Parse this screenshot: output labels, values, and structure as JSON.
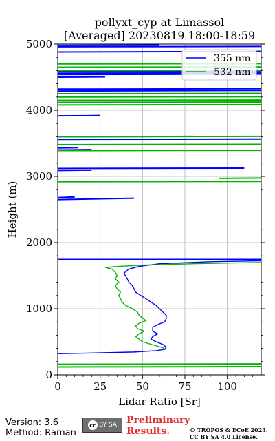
{
  "title_line1": "pollyxt_cyp at Limassol",
  "title_line2": "[Averaged] 20230819 18:00-18:59",
  "footer": {
    "version": "Version: 3.6",
    "method": "Method: Raman",
    "cc_label": "BY SA",
    "preliminary_line1": "Preliminary",
    "preliminary_line2": "Results.",
    "copyright_line1": "© TROPOS & ECoE 2023.",
    "copyright_line2": "CC BY SA 4.0 License."
  },
  "colors": {
    "s355": "#0000ff",
    "s532": "#00b400",
    "grid": "#b0b0b0"
  },
  "chart_data": {
    "type": "line",
    "title": "pollyxt_cyp at Limassol [Averaged] 20230819 18:00-18:59",
    "xlabel": "Lidar Ratio [Sr]",
    "ylabel": "Height (m)",
    "xlim": [
      0,
      120
    ],
    "ylim": [
      0,
      5000
    ],
    "xticks": [
      0,
      25,
      50,
      75,
      100
    ],
    "yticks": [
      0,
      1000,
      2000,
      3000,
      4000,
      5000
    ],
    "grid": true,
    "legend_position": "top-right",
    "series": [
      {
        "name": "355 nm",
        "points": [
          [
            0,
            320
          ],
          [
            20,
            330
          ],
          [
            45,
            345
          ],
          [
            58,
            365
          ],
          [
            63,
            385
          ],
          [
            64,
            420
          ],
          [
            62,
            460
          ],
          [
            58,
            500
          ],
          [
            55,
            540
          ],
          [
            56,
            580
          ],
          [
            59,
            620
          ],
          [
            56,
            660
          ],
          [
            56,
            720
          ],
          [
            59,
            760
          ],
          [
            63,
            800
          ],
          [
            64,
            850
          ],
          [
            64,
            900
          ],
          [
            62,
            950
          ],
          [
            60,
            1000
          ],
          [
            58,
            1050
          ],
          [
            55,
            1100
          ],
          [
            52,
            1150
          ],
          [
            49,
            1200
          ],
          [
            46,
            1250
          ],
          [
            45,
            1300
          ],
          [
            44,
            1350
          ],
          [
            42,
            1400
          ],
          [
            41,
            1450
          ],
          [
            40,
            1500
          ],
          [
            39,
            1530
          ],
          [
            40,
            1560
          ],
          [
            42,
            1600
          ],
          [
            48,
            1640
          ],
          [
            60,
            1680
          ],
          [
            90,
            1710
          ],
          [
            120,
            1725
          ]
        ],
        "segments": [
          [
            [
              0,
              1745
            ],
            [
              120,
              1745
            ]
          ],
          [
            [
              0,
              2650
            ],
            [
              45,
              2670
            ]
          ],
          [
            [
              0,
              2680
            ],
            [
              10,
              2690
            ]
          ],
          [
            [
              0,
              3090
            ],
            [
              20,
              3095
            ]
          ],
          [
            [
              0,
              3120
            ],
            [
              110,
              3125
            ]
          ],
          [
            [
              0,
              3400
            ],
            [
              20,
              3405
            ]
          ],
          [
            [
              0,
              3430
            ],
            [
              12,
              3435
            ]
          ],
          [
            [
              0,
              3560
            ],
            [
              120,
              3565
            ]
          ],
          [
            [
              0,
              3600
            ],
            [
              80,
              3605
            ]
          ],
          [
            [
              0,
              3915
            ],
            [
              25,
              3920
            ]
          ],
          [
            [
              0,
              4290
            ],
            [
              120,
              4300
            ]
          ],
          [
            [
              0,
              4320
            ],
            [
              120,
              4325
            ]
          ],
          [
            [
              0,
              4500
            ],
            [
              28,
              4505
            ]
          ],
          [
            [
              0,
              4540
            ],
            [
              120,
              4545
            ]
          ],
          [
            [
              0,
              4560
            ],
            [
              120,
              4565
            ]
          ],
          [
            [
              0,
              4590
            ],
            [
              120,
              4595
            ]
          ],
          [
            [
              0,
              4880
            ],
            [
              120,
              4890
            ]
          ],
          [
            [
              0,
              4960
            ],
            [
              120,
              4965
            ]
          ],
          [
            [
              0,
              4980
            ],
            [
              60,
              4985
            ]
          ]
        ]
      },
      {
        "name": "532 nm",
        "points": [
          [
            64,
            380
          ],
          [
            62,
            410
          ],
          [
            58,
            440
          ],
          [
            54,
            470
          ],
          [
            50,
            500
          ],
          [
            48,
            540
          ],
          [
            46,
            580
          ],
          [
            48,
            620
          ],
          [
            51,
            660
          ],
          [
            47,
            700
          ],
          [
            46,
            740
          ],
          [
            48,
            780
          ],
          [
            52,
            820
          ],
          [
            50,
            860
          ],
          [
            48,
            900
          ],
          [
            47,
            950
          ],
          [
            44,
            1000
          ],
          [
            40,
            1050
          ],
          [
            38,
            1100
          ],
          [
            37,
            1150
          ],
          [
            36,
            1200
          ],
          [
            37,
            1250
          ],
          [
            35,
            1300
          ],
          [
            34,
            1350
          ],
          [
            36,
            1400
          ],
          [
            34,
            1450
          ],
          [
            35,
            1500
          ],
          [
            34,
            1550
          ],
          [
            32,
            1600
          ],
          [
            28,
            1625
          ],
          [
            36,
            1640
          ],
          [
            50,
            1660
          ],
          [
            80,
            1680
          ],
          [
            120,
            1700
          ]
        ],
        "segments": [
          [
            [
              0,
              120
            ],
            [
              120,
              125
            ]
          ],
          [
            [
              0,
              160
            ],
            [
              120,
              165
            ]
          ],
          [
            [
              0,
              2920
            ],
            [
              120,
              2925
            ]
          ],
          [
            [
              95,
              2970
            ],
            [
              120,
              2975
            ]
          ],
          [
            [
              0,
              3390
            ],
            [
              120,
              3395
            ]
          ],
          [
            [
              0,
              3480
            ],
            [
              120,
              3485
            ]
          ],
          [
            [
              0,
              3600
            ],
            [
              120,
              3605
            ]
          ],
          [
            [
              0,
              4080
            ],
            [
              120,
              4085
            ]
          ],
          [
            [
              0,
              4120
            ],
            [
              120,
              4125
            ]
          ],
          [
            [
              0,
              4150
            ],
            [
              120,
              4155
            ]
          ],
          [
            [
              0,
              4200
            ],
            [
              120,
              4205
            ]
          ],
          [
            [
              0,
              4250
            ],
            [
              120,
              4255
            ]
          ],
          [
            [
              0,
              4600
            ],
            [
              120,
              4605
            ]
          ],
          [
            [
              0,
              4650
            ],
            [
              120,
              4655
            ]
          ],
          [
            [
              0,
              4700
            ],
            [
              120,
              4705
            ]
          ]
        ]
      }
    ]
  }
}
